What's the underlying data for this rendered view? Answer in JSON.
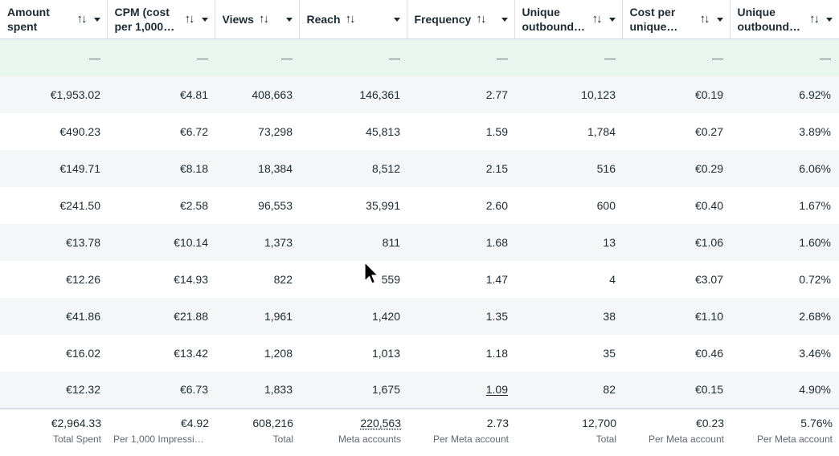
{
  "columns": [
    {
      "label": "Amount spent",
      "inline": false
    },
    {
      "label": "CPM (cost per 1,000…",
      "inline": false
    },
    {
      "label": "Views",
      "inline": true
    },
    {
      "label": "Reach",
      "inline": true
    },
    {
      "label": "Frequency",
      "inline": true
    },
    {
      "label": "Unique outbound…",
      "inline": false
    },
    {
      "label": "Cost per unique…",
      "inline": false
    },
    {
      "label": "Unique outbound…",
      "inline": false
    }
  ],
  "icons": {
    "sort": "sort-arrows-icon",
    "caret": "caret-down-icon"
  },
  "dash_row": [
    "—",
    "—",
    "—",
    "—",
    "—",
    "—",
    "—",
    "—"
  ],
  "rows": [
    [
      "€1,953.02",
      "€4.81",
      "408,663",
      "146,361",
      "2.77",
      "10,123",
      "€0.19",
      "6.92%"
    ],
    [
      "€490.23",
      "€6.72",
      "73,298",
      "45,813",
      "1.59",
      "1,784",
      "€0.27",
      "3.89%"
    ],
    [
      "€149.71",
      "€8.18",
      "18,384",
      "8,512",
      "2.15",
      "516",
      "€0.29",
      "6.06%"
    ],
    [
      "€241.50",
      "€2.58",
      "96,553",
      "35,991",
      "2.60",
      "600",
      "€0.40",
      "1.67%"
    ],
    [
      "€13.78",
      "€10.14",
      "1,373",
      "811",
      "1.68",
      "13",
      "€1.06",
      "1.60%"
    ],
    [
      "€12.26",
      "€14.93",
      "822",
      "559",
      "1.47",
      "4",
      "€3.07",
      "0.72%"
    ],
    [
      "€41.86",
      "€21.88",
      "1,961",
      "1,420",
      "1.35",
      "38",
      "€1.10",
      "2.68%"
    ],
    [
      "€16.02",
      "€13.42",
      "1,208",
      "1,013",
      "1.18",
      "35",
      "€0.46",
      "3.46%"
    ],
    [
      "€12.32",
      "€6.73",
      "1,833",
      "1,675",
      "1.09",
      "82",
      "€0.15",
      "4.90%"
    ]
  ],
  "totals": [
    {
      "value": "€2,964.33",
      "label": "Total Spent"
    },
    {
      "value": "€4.92",
      "label": "Per 1,000 Impressio…"
    },
    {
      "value": "608,216",
      "label": "Total"
    },
    {
      "value": "220,563",
      "label": "Meta accounts"
    },
    {
      "value": "2.73",
      "label": "Per Meta account"
    },
    {
      "value": "12,700",
      "label": "Total"
    },
    {
      "value": "€0.23",
      "label": "Per Meta account"
    },
    {
      "value": "5.76%",
      "label": "Per Meta account"
    }
  ],
  "colors": {
    "row_alt": "#f5f6f7",
    "dash_row": "#e9f5ef",
    "text": "#1c2b33",
    "muted": "#606770"
  }
}
